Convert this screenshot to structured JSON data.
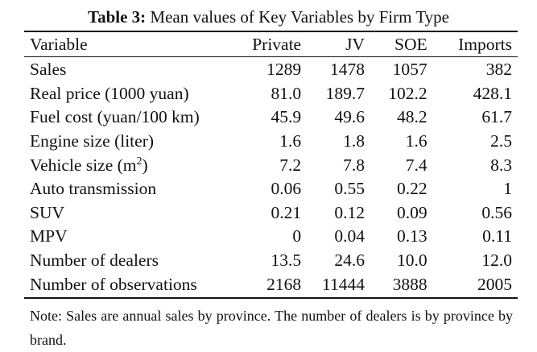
{
  "caption": {
    "label": "Table 3:",
    "text": "Mean values of Key Variables by Firm Type"
  },
  "table": {
    "headers": {
      "variable": "Variable",
      "private": "Private",
      "jv": "JV",
      "soe": "SOE",
      "imports": "Imports"
    },
    "rows": [
      {
        "variable": "Sales",
        "private": "1289",
        "jv": "1478",
        "soe": "1057",
        "imports": "382"
      },
      {
        "variable": "Real price (1000 yuan)",
        "private": "81.0",
        "jv": "189.7",
        "soe": "102.2",
        "imports": "428.1"
      },
      {
        "variable": "Fuel cost (yuan/100 km)",
        "private": "45.9",
        "jv": "49.6",
        "soe": "48.2",
        "imports": "61.7"
      },
      {
        "variable": "Engine size (liter)",
        "private": "1.6",
        "jv": "1.8",
        "soe": "1.6",
        "imports": "2.5"
      },
      {
        "variable": "Vehicle size (m",
        "variable_sup": "2",
        "variable_suffix": ")",
        "private": "7.2",
        "jv": "7.8",
        "soe": "7.4",
        "imports": "8.3"
      },
      {
        "variable": "Auto transmission",
        "private": "0.06",
        "jv": "0.55",
        "soe": "0.22",
        "imports": "1"
      },
      {
        "variable": "SUV",
        "private": "0.21",
        "jv": "0.12",
        "soe": "0.09",
        "imports": "0.56"
      },
      {
        "variable": "MPV",
        "private": "0",
        "jv": "0.04",
        "soe": "0.13",
        "imports": "0.11"
      },
      {
        "variable": "Number of dealers",
        "private": "13.5",
        "jv": "24.6",
        "soe": "10.0",
        "imports": "12.0"
      },
      {
        "variable": "Number of observations",
        "private": "2168",
        "jv": "11444",
        "soe": "3888",
        "imports": "2005"
      }
    ]
  },
  "note": "Note: Sales are annual sales by province. The number of dealers is by province by brand."
}
